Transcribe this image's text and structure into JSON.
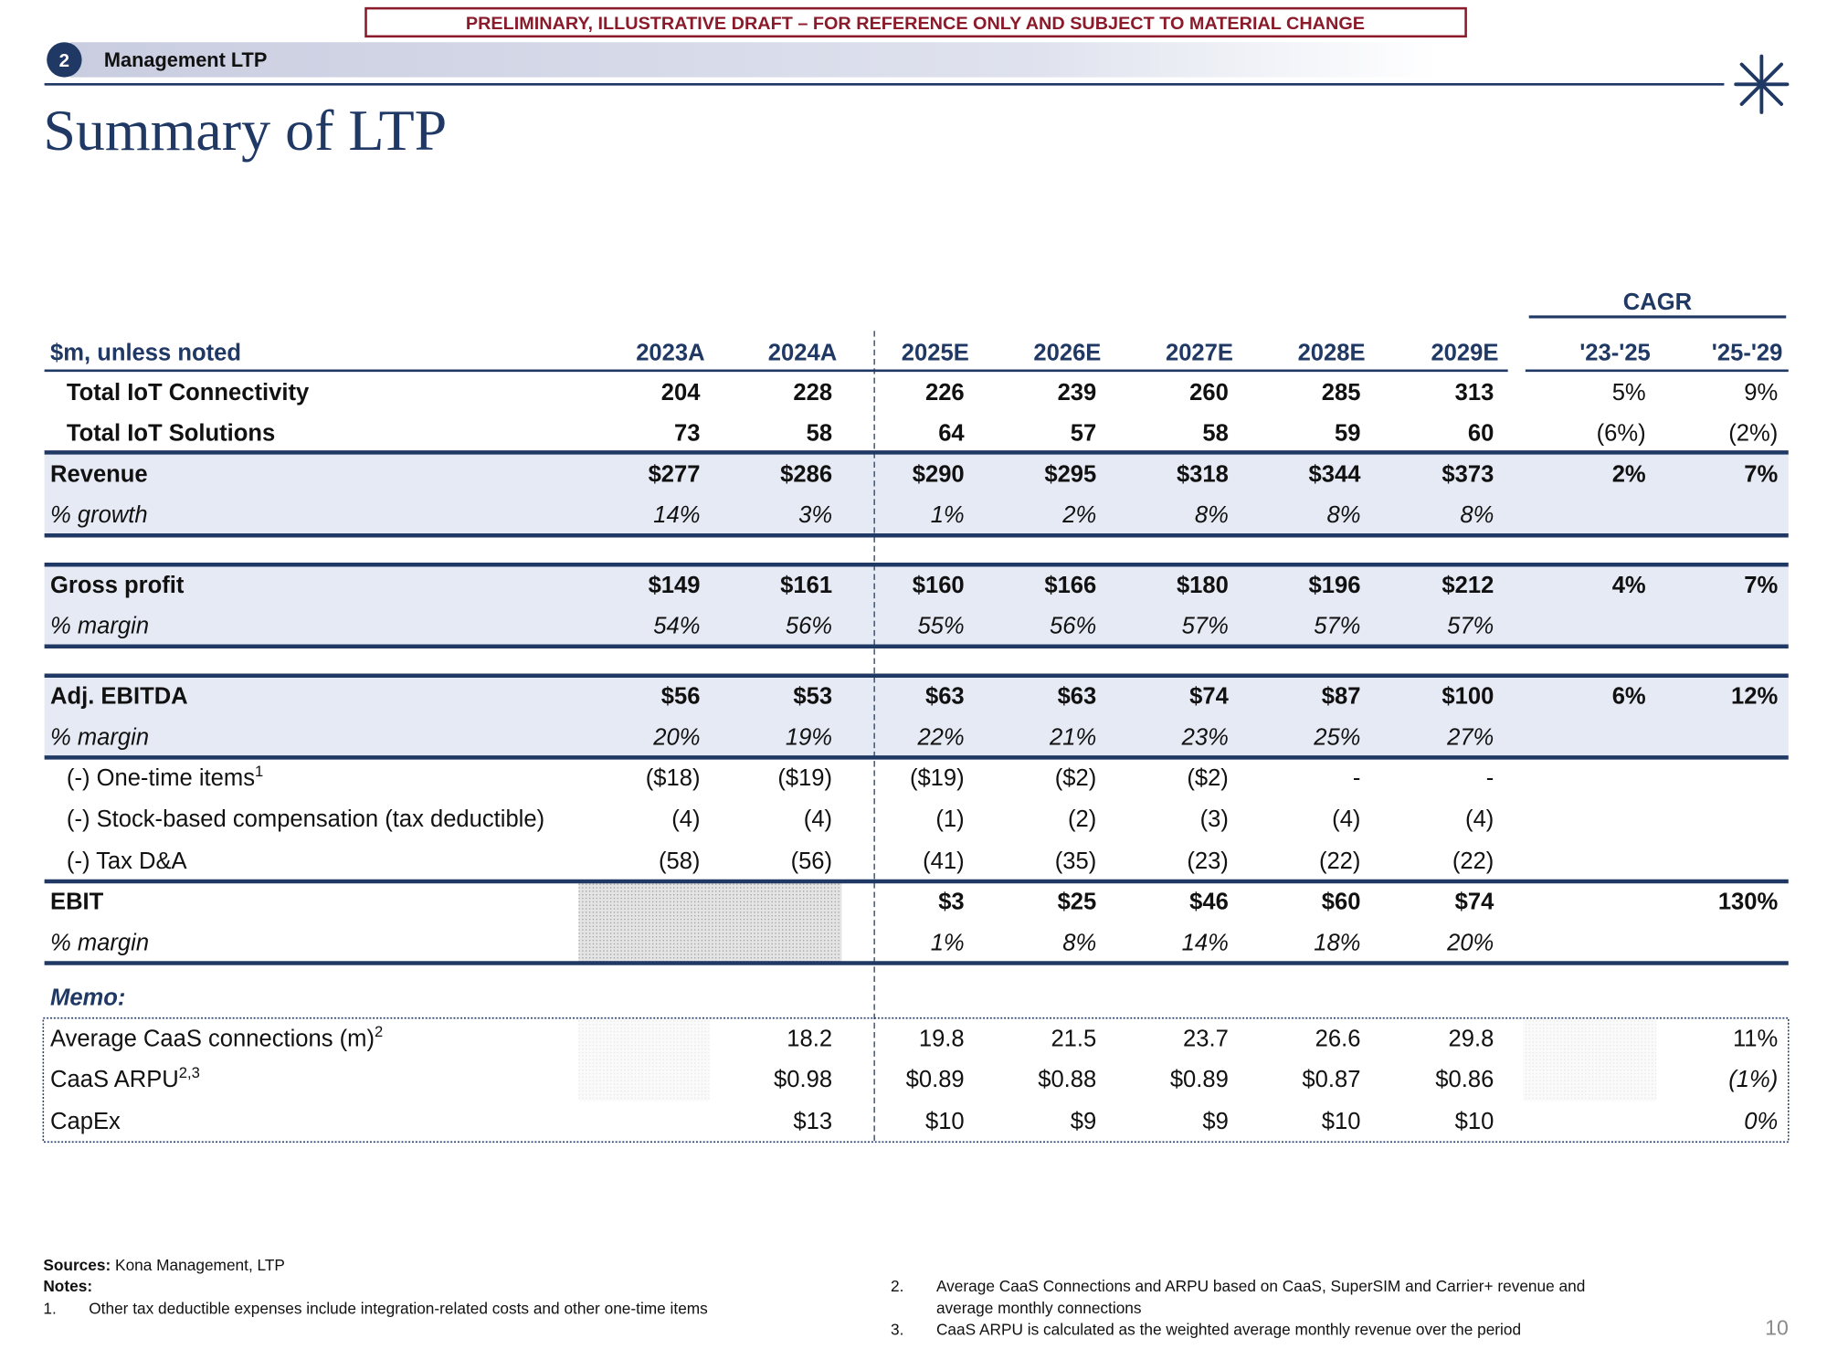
{
  "banner": "PRELIMINARY, ILLUSTRATIVE DRAFT – FOR REFERENCE ONLY AND SUBJECT TO MATERIAL CHANGE",
  "section": {
    "number": "2",
    "label": "Management LTP"
  },
  "title": "Summary of LTP",
  "table": {
    "cagr_header": "CAGR",
    "header": [
      "$m, unless noted",
      "2023A",
      "2024A",
      "2025E",
      "2026E",
      "2027E",
      "2028E",
      "2029E",
      "'23-'25",
      "'25-'29"
    ],
    "rows": [
      {
        "label": "Total IoT Connectivity",
        "cells": [
          "204",
          "228",
          "226",
          "239",
          "260",
          "285",
          "313",
          "5%",
          "9%"
        ]
      },
      {
        "label": "Total IoT Solutions",
        "cells": [
          "73",
          "58",
          "64",
          "57",
          "58",
          "59",
          "60",
          "(6%)",
          "(2%)"
        ]
      },
      {
        "label": "Revenue",
        "cells": [
          "$277",
          "$286",
          "$290",
          "$295",
          "$318",
          "$344",
          "$373",
          "2%",
          "7%"
        ]
      },
      {
        "label": "% growth",
        "cells": [
          "14%",
          "3%",
          "1%",
          "2%",
          "8%",
          "8%",
          "8%",
          null,
          null
        ]
      },
      {
        "label": "Gross profit",
        "cells": [
          "$149",
          "$161",
          "$160",
          "$166",
          "$180",
          "$196",
          "$212",
          "4%",
          "7%"
        ]
      },
      {
        "label": "% margin",
        "cells": [
          "54%",
          "56%",
          "55%",
          "56%",
          "57%",
          "57%",
          "57%",
          null,
          null
        ]
      },
      {
        "label": "Adj. EBITDA",
        "cells": [
          "$56",
          "$53",
          "$63",
          "$63",
          "$74",
          "$87",
          "$100",
          "6%",
          "12%"
        ]
      },
      {
        "label": "% margin",
        "cells": [
          "20%",
          "19%",
          "22%",
          "21%",
          "23%",
          "25%",
          "27%",
          null,
          null
        ]
      },
      {
        "label": "(-) One-time items",
        "note": "1",
        "cells": [
          "($18)",
          "($19)",
          "($19)",
          "($2)",
          "($2)",
          "-",
          "-",
          null,
          null
        ]
      },
      {
        "label": "(-) Stock-based compensation (tax deductible)",
        "cells": [
          "(4)",
          "(4)",
          "(1)",
          "(2)",
          "(3)",
          "(4)",
          "(4)",
          null,
          null
        ]
      },
      {
        "label": "(-) Tax D&A",
        "cells": [
          "(58)",
          "(56)",
          "(41)",
          "(35)",
          "(23)",
          "(22)",
          "(22)",
          null,
          null
        ]
      },
      {
        "label": "EBIT",
        "cells": [
          null,
          null,
          "$3",
          "$25",
          "$46",
          "$60",
          "$74",
          null,
          "130%"
        ]
      },
      {
        "label": "% margin",
        "cells": [
          null,
          null,
          "1%",
          "8%",
          "14%",
          "18%",
          "20%",
          null,
          null
        ]
      }
    ],
    "memo_label": "Memo:",
    "memo_rows": [
      {
        "label": "Average CaaS connections (m)",
        "note": "2",
        "cells": [
          null,
          "18.2",
          "19.8",
          "21.5",
          "23.7",
          "26.6",
          "29.8",
          null,
          "11%"
        ]
      },
      {
        "label": "CaaS ARPU",
        "note": "2,3",
        "cells": [
          null,
          "$0.98",
          "$0.89",
          "$0.88",
          "$0.89",
          "$0.87",
          "$0.86",
          null,
          "(1%)"
        ]
      },
      {
        "label": "CapEx",
        "cells": [
          null,
          "$13",
          "$10",
          "$9",
          "$9",
          "$10",
          "$10",
          null,
          "0%"
        ]
      }
    ]
  },
  "footer": {
    "sources_label": "Sources:",
    "sources": "Kona Management, LTP",
    "notes_label": "Notes:",
    "notes": [
      {
        "num": "1.",
        "lines": [
          "Other tax deductible expenses include integration-related costs and other one-time items"
        ]
      },
      {
        "num": "2.",
        "lines": [
          "Average CaaS Connections and ARPU based on CaaS, SuperSIM and Carrier+ revenue and",
          "average monthly connections"
        ]
      },
      {
        "num": "3.",
        "lines": [
          "CaaS ARPU is calculated as the weighted average monthly revenue over the period"
        ]
      }
    ],
    "page_number": "10"
  }
}
